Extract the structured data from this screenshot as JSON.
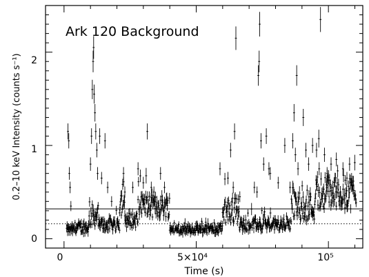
{
  "chart_data": {
    "type": "scatter",
    "title": "Ark 120 Background",
    "xlabel": "Time (s)",
    "ylabel": "0.2–10 keV Intensity (counts s⁻¹)",
    "xlim": [
      -7000,
      113000
    ],
    "ylim": [
      -0.1,
      2.5
    ],
    "x_major_ticks": [
      0,
      50000,
      100000
    ],
    "x_tick_labels": [
      "0",
      "5×10⁴",
      "10⁵"
    ],
    "y_major_ticks": [
      0,
      1,
      2
    ],
    "y_tick_labels": [
      "0",
      "1",
      "2"
    ],
    "reference_lines": [
      {
        "style": "solid",
        "y": 0.32
      },
      {
        "style": "dotted",
        "y": 0.16
      }
    ],
    "marker_color": "#000000",
    "segments": [
      {
        "x_start": 1000,
        "x_end": 4000,
        "baseline": 0.1,
        "scatter": 0.04
      },
      {
        "x_start": 4000,
        "x_end": 9500,
        "baseline": 0.12,
        "scatter": 0.06
      },
      {
        "x_start": 9500,
        "x_end": 13000,
        "baseline": 0.25,
        "scatter": 0.12
      },
      {
        "x_start": 13000,
        "x_end": 21000,
        "baseline": 0.15,
        "scatter": 0.07
      },
      {
        "x_start": 21000,
        "x_end": 23000,
        "baseline": 0.4,
        "scatter": 0.15
      },
      {
        "x_start": 23000,
        "x_end": 28000,
        "baseline": 0.2,
        "scatter": 0.08
      },
      {
        "x_start": 28000,
        "x_end": 40000,
        "baseline": 0.35,
        "scatter": 0.12
      },
      {
        "x_start": 40000,
        "x_end": 60000,
        "baseline": 0.1,
        "scatter": 0.04
      },
      {
        "x_start": 60000,
        "x_end": 66000,
        "baseline": 0.3,
        "scatter": 0.15
      },
      {
        "x_start": 66000,
        "x_end": 86000,
        "baseline": 0.15,
        "scatter": 0.06
      },
      {
        "x_start": 86000,
        "x_end": 95000,
        "baseline": 0.35,
        "scatter": 0.15
      },
      {
        "x_start": 95000,
        "x_end": 110500,
        "baseline": 0.5,
        "scatter": 0.18
      }
    ],
    "flares": [
      {
        "x": 1500,
        "y": 1.15
      },
      {
        "x": 1800,
        "y": 1.05
      },
      {
        "x": 2000,
        "y": 0.7
      },
      {
        "x": 2300,
        "y": 0.55
      },
      {
        "x": 2600,
        "y": 0.35
      },
      {
        "x": 10000,
        "y": 0.8
      },
      {
        "x": 10400,
        "y": 1.1
      },
      {
        "x": 10700,
        "y": 1.6
      },
      {
        "x": 11000,
        "y": 1.9
      },
      {
        "x": 11200,
        "y": 2.05
      },
      {
        "x": 11400,
        "y": 1.55
      },
      {
        "x": 11700,
        "y": 1.35
      },
      {
        "x": 12000,
        "y": 1.15
      },
      {
        "x": 12400,
        "y": 0.95
      },
      {
        "x": 12700,
        "y": 0.7
      },
      {
        "x": 13500,
        "y": 1.1
      },
      {
        "x": 14200,
        "y": 0.65
      },
      {
        "x": 15500,
        "y": 1.05
      },
      {
        "x": 16500,
        "y": 0.55
      },
      {
        "x": 18000,
        "y": 0.4
      },
      {
        "x": 22500,
        "y": 0.7
      },
      {
        "x": 23000,
        "y": 0.5
      },
      {
        "x": 26000,
        "y": 0.55
      },
      {
        "x": 28000,
        "y": 0.75
      },
      {
        "x": 30000,
        "y": 0.6
      },
      {
        "x": 31500,
        "y": 1.15
      },
      {
        "x": 33000,
        "y": 0.55
      },
      {
        "x": 34000,
        "y": 0.5
      },
      {
        "x": 36500,
        "y": 0.7
      },
      {
        "x": 38000,
        "y": 0.55
      },
      {
        "x": 59000,
        "y": 0.75
      },
      {
        "x": 62000,
        "y": 0.65
      },
      {
        "x": 63000,
        "y": 0.95
      },
      {
        "x": 64000,
        "y": 0.55
      },
      {
        "x": 64500,
        "y": 1.15
      },
      {
        "x": 65000,
        "y": 2.15
      },
      {
        "x": 66500,
        "y": 0.45
      },
      {
        "x": 72000,
        "y": 0.55
      },
      {
        "x": 73000,
        "y": 0.5
      },
      {
        "x": 73500,
        "y": 1.75
      },
      {
        "x": 73800,
        "y": 1.9
      },
      {
        "x": 74000,
        "y": 2.3
      },
      {
        "x": 74500,
        "y": 1.05
      },
      {
        "x": 75500,
        "y": 0.8
      },
      {
        "x": 76500,
        "y": 1.1
      },
      {
        "x": 77500,
        "y": 0.75
      },
      {
        "x": 78000,
        "y": 0.7
      },
      {
        "x": 81000,
        "y": 0.6
      },
      {
        "x": 83500,
        "y": 1.0
      },
      {
        "x": 85500,
        "y": 0.55
      },
      {
        "x": 86500,
        "y": 1.05
      },
      {
        "x": 87000,
        "y": 1.35
      },
      {
        "x": 87500,
        "y": 0.9
      },
      {
        "x": 88000,
        "y": 1.75
      },
      {
        "x": 88500,
        "y": 0.75
      },
      {
        "x": 90500,
        "y": 1.3
      },
      {
        "x": 91500,
        "y": 0.95
      },
      {
        "x": 92500,
        "y": 0.8
      },
      {
        "x": 94000,
        "y": 1.0
      },
      {
        "x": 95500,
        "y": 0.95
      },
      {
        "x": 96500,
        "y": 0.75
      },
      {
        "x": 97000,
        "y": 2.35
      },
      {
        "x": 98500,
        "y": 0.9
      },
      {
        "x": 99500,
        "y": 0.7
      },
      {
        "x": 101000,
        "y": 0.8
      },
      {
        "x": 103000,
        "y": 0.85
      },
      {
        "x": 105500,
        "y": 0.75
      },
      {
        "x": 107000,
        "y": 0.65
      },
      {
        "x": 108000,
        "y": 0.8
      }
    ]
  }
}
